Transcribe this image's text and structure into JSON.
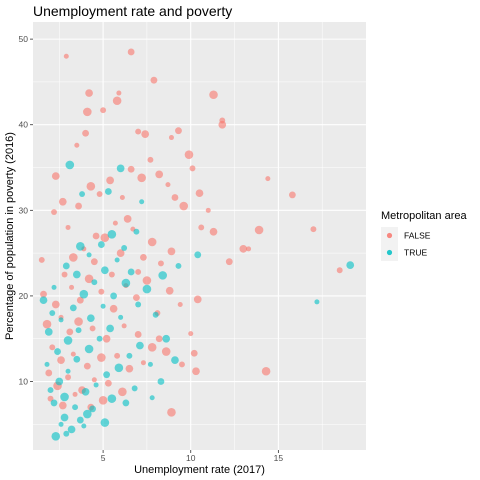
{
  "chart_data": {
    "type": "scatter",
    "title": "Unemployment rate and poverty",
    "xlabel": "Unemployment rate (2017)",
    "ylabel": "Percentage of population in poverty (2016)",
    "xlim": [
      1,
      20
    ],
    "ylim": [
      2,
      52
    ],
    "x_ticks": [
      5,
      10,
      15
    ],
    "y_ticks": [
      10,
      20,
      30,
      40,
      50
    ],
    "grid": true,
    "legend": {
      "title": "Metropolitan area",
      "position": "right"
    },
    "point_alpha": 0.6,
    "series": [
      {
        "name": "FALSE",
        "color": "#F8766D",
        "points": [
          [
            2.9,
            48.0
          ],
          [
            6.6,
            48.5
          ],
          [
            4.1,
            41.5
          ],
          [
            5.0,
            41.7
          ],
          [
            4.2,
            43.7
          ],
          [
            5.9,
            43.7
          ],
          [
            7.9,
            45.2
          ],
          [
            11.3,
            43.5
          ],
          [
            11.8,
            40.5
          ],
          [
            11.8,
            40.0
          ],
          [
            14.4,
            33.7
          ],
          [
            15.8,
            31.8
          ],
          [
            13.9,
            27.7
          ],
          [
            17.0,
            27.8
          ],
          [
            13.0,
            25.5
          ],
          [
            13.3,
            25.5
          ],
          [
            12.2,
            24.0
          ],
          [
            14.3,
            11.2
          ],
          [
            18.5,
            23.0
          ],
          [
            10.4,
            19.6
          ],
          [
            10.0,
            15.6
          ],
          [
            10.2,
            13.3
          ],
          [
            8.9,
            6.4
          ],
          [
            1.5,
            24.2
          ],
          [
            2.3,
            34.0
          ],
          [
            3.5,
            37.6
          ],
          [
            4.0,
            39.0
          ],
          [
            5.8,
            42.8
          ],
          [
            7.0,
            39.2
          ],
          [
            7.4,
            38.9
          ],
          [
            8.9,
            38.5
          ],
          [
            9.3,
            39.3
          ],
          [
            9.9,
            36.5
          ],
          [
            10.1,
            34.9
          ],
          [
            10.5,
            32.0
          ],
          [
            11.0,
            30.0
          ],
          [
            1.6,
            20.2
          ],
          [
            1.8,
            16.7
          ],
          [
            2.2,
            29.8
          ],
          [
            2.7,
            31.0
          ],
          [
            3.0,
            28.0
          ],
          [
            3.6,
            30.5
          ],
          [
            4.3,
            32.8
          ],
          [
            4.8,
            31.9
          ],
          [
            5.4,
            33.5
          ],
          [
            6.1,
            31.5
          ],
          [
            6.6,
            34.8
          ],
          [
            7.2,
            33.8
          ],
          [
            7.7,
            35.9
          ],
          [
            8.2,
            34.2
          ],
          [
            8.7,
            33.0
          ],
          [
            9.1,
            31.5
          ],
          [
            9.6,
            30.5
          ],
          [
            10.6,
            28.0
          ],
          [
            11.3,
            27.5
          ],
          [
            9.4,
            19.0
          ],
          [
            8.2,
            15.0
          ],
          [
            8.6,
            13.5
          ],
          [
            9.5,
            12.0
          ],
          [
            10.3,
            11.2
          ],
          [
            3.9,
            25.5
          ],
          [
            4.5,
            24.0
          ],
          [
            5.1,
            26.8
          ],
          [
            5.5,
            22.5
          ],
          [
            6.0,
            25.0
          ],
          [
            6.7,
            27.8
          ],
          [
            7.3,
            24.5
          ],
          [
            7.8,
            26.3
          ],
          [
            8.3,
            23.8
          ],
          [
            8.9,
            25.2
          ],
          [
            3.2,
            21.0
          ],
          [
            3.7,
            19.5
          ],
          [
            4.2,
            22.0
          ],
          [
            4.9,
            20.5
          ],
          [
            5.6,
            18.5
          ],
          [
            6.3,
            21.2
          ],
          [
            6.9,
            19.8
          ],
          [
            7.5,
            21.8
          ],
          [
            8.1,
            18.0
          ],
          [
            8.8,
            20.6
          ],
          [
            2.6,
            17.5
          ],
          [
            3.1,
            15.8
          ],
          [
            3.6,
            17.0
          ],
          [
            4.4,
            16.2
          ],
          [
            5.2,
            15.0
          ],
          [
            6.2,
            16.5
          ],
          [
            7.0,
            15.5
          ],
          [
            7.8,
            14.0
          ],
          [
            2.1,
            14.0
          ],
          [
            2.6,
            12.5
          ],
          [
            3.3,
            13.2
          ],
          [
            4.1,
            11.8
          ],
          [
            4.9,
            12.8
          ],
          [
            5.8,
            13.0
          ],
          [
            6.5,
            11.5
          ],
          [
            7.3,
            12.2
          ],
          [
            1.9,
            11.0
          ],
          [
            2.4,
            9.5
          ],
          [
            3.0,
            10.5
          ],
          [
            3.8,
            9.0
          ],
          [
            4.5,
            10.2
          ],
          [
            5.3,
            9.8
          ],
          [
            6.1,
            8.8
          ],
          [
            2.0,
            8.0
          ],
          [
            2.7,
            7.2
          ],
          [
            3.4,
            8.5
          ],
          [
            4.3,
            7.0
          ],
          [
            5.0,
            7.8
          ],
          [
            7.0,
            22.8
          ],
          [
            6.4,
            29.0
          ],
          [
            5.7,
            28.5
          ],
          [
            4.6,
            27.0
          ],
          [
            3.3,
            24.5
          ],
          [
            2.8,
            22.5
          ],
          [
            2.3,
            19.0
          ]
        ]
      },
      {
        "name": "TRUE",
        "color": "#00BFC4",
        "points": [
          [
            19.1,
            23.6
          ],
          [
            17.2,
            19.3
          ],
          [
            10.4,
            24.8
          ],
          [
            8.4,
            22.4
          ],
          [
            3.8,
            31.9
          ],
          [
            6.0,
            34.9
          ],
          [
            7.2,
            31.0
          ],
          [
            5.3,
            32.2
          ],
          [
            3.1,
            35.3
          ],
          [
            9.3,
            23.5
          ],
          [
            9.1,
            12.5
          ],
          [
            7.8,
            8.1
          ],
          [
            8.3,
            10.0
          ],
          [
            2.3,
            3.6
          ],
          [
            2.9,
            3.9
          ],
          [
            3.2,
            4.4
          ],
          [
            2.6,
            5.0
          ],
          [
            3.7,
            5.5
          ],
          [
            4.1,
            6.2
          ],
          [
            2.0,
            9.0
          ],
          [
            2.5,
            10.0
          ],
          [
            3.0,
            11.2
          ],
          [
            3.5,
            12.6
          ],
          [
            4.2,
            13.8
          ],
          [
            4.8,
            15.0
          ],
          [
            5.4,
            16.2
          ],
          [
            6.0,
            17.5
          ],
          [
            2.2,
            7.5
          ],
          [
            2.8,
            8.2
          ],
          [
            3.4,
            7.0
          ],
          [
            4.0,
            8.8
          ],
          [
            4.6,
            9.6
          ],
          [
            5.2,
            10.8
          ],
          [
            5.9,
            11.6
          ],
          [
            6.5,
            13.0
          ],
          [
            7.1,
            14.2
          ],
          [
            1.8,
            12.0
          ],
          [
            2.4,
            13.5
          ],
          [
            3.0,
            14.8
          ],
          [
            3.6,
            16.0
          ],
          [
            4.3,
            17.4
          ],
          [
            5.0,
            18.8
          ],
          [
            5.6,
            20.0
          ],
          [
            6.3,
            21.5
          ],
          [
            7.0,
            19.0
          ],
          [
            1.9,
            15.8
          ],
          [
            2.6,
            17.2
          ],
          [
            3.3,
            18.6
          ],
          [
            3.9,
            20.2
          ],
          [
            4.5,
            21.6
          ],
          [
            5.1,
            23.0
          ],
          [
            5.8,
            24.2
          ],
          [
            6.6,
            22.8
          ],
          [
            7.5,
            20.8
          ],
          [
            8.0,
            17.8
          ],
          [
            3.5,
            22.5
          ],
          [
            4.2,
            24.8
          ],
          [
            4.9,
            26.0
          ],
          [
            5.5,
            27.2
          ],
          [
            6.2,
            25.6
          ],
          [
            2.8,
            5.8
          ],
          [
            3.9,
            4.8
          ],
          [
            4.4,
            6.8
          ],
          [
            5.5,
            8.0
          ],
          [
            6.8,
            9.2
          ],
          [
            1.6,
            19.5
          ],
          [
            2.2,
            21.0
          ],
          [
            2.9,
            23.5
          ],
          [
            3.7,
            25.8
          ],
          [
            6.9,
            27.5
          ],
          [
            8.6,
            15.0
          ],
          [
            7.7,
            12.0
          ],
          [
            6.3,
            7.5
          ],
          [
            5.1,
            5.2
          ],
          [
            2.1,
            18.0
          ]
        ]
      }
    ]
  }
}
